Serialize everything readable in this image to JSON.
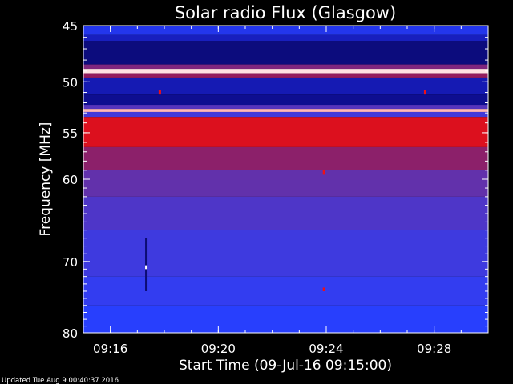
{
  "chart_data": {
    "type": "heatmap",
    "title": "Solar radio Flux (Glasgow)",
    "xlabel": "Start Time (09-Jul-16 09:15:00)",
    "ylabel": "Frequency [MHz]",
    "x_start": "09:15:00",
    "x_end": "09:30:00",
    "x_tick_labels": [
      "09:16",
      "09:20",
      "09:24",
      "09:28"
    ],
    "x_tick_minutes": [
      16,
      20,
      24,
      28
    ],
    "y_tick_labels": [
      "45",
      "50",
      "55",
      "60",
      "70",
      "80"
    ],
    "y_tick_mhz": [
      45,
      50,
      55,
      60,
      70,
      80
    ],
    "ylim": [
      45,
      80
    ],
    "y_scale": "log",
    "colormap": [
      "#000000",
      "#1010a0",
      "#2840ff",
      "#6a2fa0",
      "#b01030",
      "#ff1010",
      "#ffffff"
    ],
    "bands": [
      {
        "from": 45.0,
        "to": 45.8,
        "level": 0.3
      },
      {
        "from": 45.8,
        "to": 46.3,
        "level": 0.22
      },
      {
        "from": 46.3,
        "to": 48.4,
        "level": 0.13
      },
      {
        "from": 48.4,
        "to": 48.8,
        "level": 0.55
      },
      {
        "from": 48.8,
        "to": 49.2,
        "level": 0.98
      },
      {
        "from": 49.2,
        "to": 49.6,
        "level": 0.6
      },
      {
        "from": 49.6,
        "to": 51.2,
        "level": 0.2
      },
      {
        "from": 51.2,
        "to": 52.2,
        "level": 0.15
      },
      {
        "from": 52.2,
        "to": 52.6,
        "level": 0.45
      },
      {
        "from": 52.6,
        "to": 52.9,
        "level": 0.95
      },
      {
        "from": 52.9,
        "to": 53.4,
        "level": 0.4
      },
      {
        "from": 53.4,
        "to": 56.5,
        "level": 0.76
      },
      {
        "from": 56.5,
        "to": 59.0,
        "level": 0.58
      },
      {
        "from": 59.0,
        "to": 62.0,
        "level": 0.48
      },
      {
        "from": 62.0,
        "to": 66.0,
        "level": 0.43
      },
      {
        "from": 66.0,
        "to": 72.0,
        "level": 0.39
      },
      {
        "from": 72.0,
        "to": 76.0,
        "level": 0.36
      },
      {
        "from": 76.0,
        "to": 80.0,
        "level": 0.33
      }
    ],
    "bursts": [
      {
        "time": "09:17:20",
        "from": 67.0,
        "to": 74.0,
        "level": 0.12
      },
      {
        "time": "09:17:20",
        "from": 70.5,
        "to": 71.0,
        "level": 1.0
      },
      {
        "time": "09:23:55",
        "from": 59.0,
        "to": 59.5,
        "level": 0.8
      },
      {
        "time": "09:23:55",
        "from": 73.5,
        "to": 74.0,
        "level": 0.8
      },
      {
        "time": "09:17:50",
        "from": 50.8,
        "to": 51.2,
        "level": 0.8
      },
      {
        "time": "09:27:40",
        "from": 50.8,
        "to": 51.2,
        "level": 0.8
      }
    ]
  },
  "footer": {
    "updated": "Updated Tue Aug  9 00:40:37 2016"
  }
}
